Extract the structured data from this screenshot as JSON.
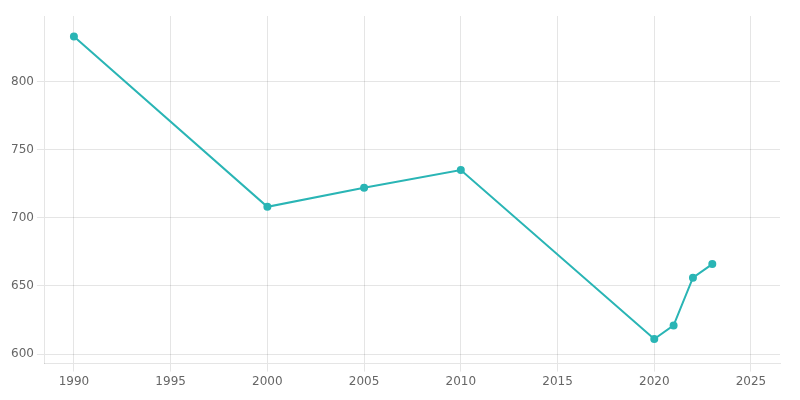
{
  "chart_data": {
    "type": "line",
    "x": [
      1990,
      2000,
      2005,
      2010,
      2020,
      2021,
      2022,
      2023
    ],
    "values": [
      833,
      708,
      722,
      735,
      611,
      621,
      656,
      666
    ],
    "color": "#2ab5b5",
    "marker": "circle",
    "xlim": [
      1988.5,
      2026.5
    ],
    "ylim": [
      593,
      848
    ],
    "xticks": [
      1990,
      1995,
      2000,
      2005,
      2010,
      2015,
      2020,
      2025
    ],
    "yticks": [
      600,
      650,
      700,
      750,
      800
    ],
    "grid": true
  }
}
